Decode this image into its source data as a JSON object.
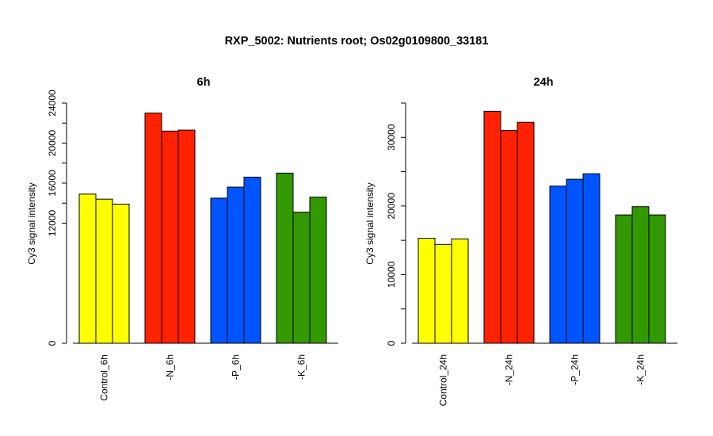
{
  "figure": {
    "title": "RXP_5002: Nutrients root; Os02g0109800_33181"
  },
  "colors": {
    "control": "#ffff00",
    "n": "#ff2200",
    "p": "#0055ff",
    "k": "#339900",
    "outline": "#000000"
  },
  "chart_data": [
    {
      "type": "bar",
      "title": "6h",
      "ylabel": "Cy3 signal intensity",
      "xlabel": "",
      "ylim": [
        0,
        24000
      ],
      "yticks": [
        0,
        12000,
        16000,
        20000,
        24000
      ],
      "ytick_labels": [
        "0",
        "12000",
        "16000",
        "20000",
        "24000"
      ],
      "minor_ticks": [
        14000,
        18000,
        22000
      ],
      "grid": false,
      "categories": [
        "Control_6h",
        "-N_6h",
        "-P_6h",
        "-K_6h"
      ],
      "category_colors": [
        "#ffff00",
        "#ff2200",
        "#0055ff",
        "#339900"
      ],
      "values": [
        [
          14900,
          14400,
          13900
        ],
        [
          23000,
          21200,
          21300
        ],
        [
          14500,
          15600,
          16600
        ],
        [
          17000,
          13100,
          14600
        ]
      ]
    },
    {
      "type": "bar",
      "title": "24h",
      "ylabel": "Cy3 signal intensity",
      "xlabel": "",
      "ylim": [
        0,
        35000
      ],
      "yticks": [
        0,
        10000,
        20000,
        30000
      ],
      "ytick_labels": [
        "0",
        "10000",
        "20000",
        "30000"
      ],
      "minor_ticks": [
        5000,
        15000,
        25000,
        35000
      ],
      "grid": false,
      "categories": [
        "Control_24h",
        "-N_24h",
        "-P_24h",
        "-K_24h"
      ],
      "category_colors": [
        "#ffff00",
        "#ff2200",
        "#0055ff",
        "#339900"
      ],
      "values": [
        [
          15300,
          14400,
          15200
        ],
        [
          33800,
          31000,
          32200
        ],
        [
          22900,
          23900,
          24700
        ],
        [
          18700,
          19900,
          18700
        ]
      ]
    }
  ]
}
